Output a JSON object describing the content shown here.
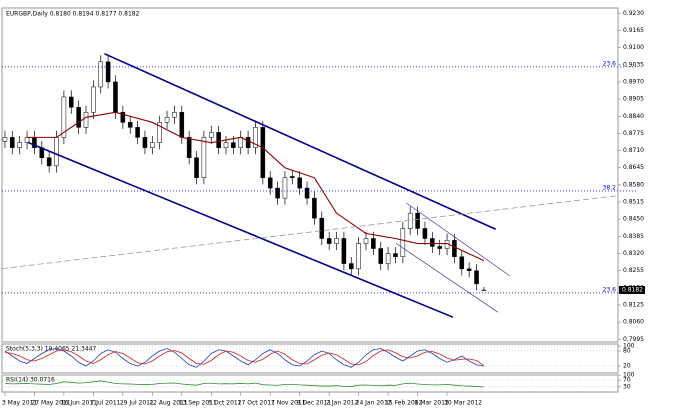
{
  "chart_data": [
    {
      "type": "candlestick",
      "title": "EURGBP,Daily 0.8180 0.8194 0.8177 0.8182",
      "bull_color": "#ffffff",
      "bear_color": "#000000",
      "outline_color": "#000000",
      "open": [
        0.8745,
        0.876,
        0.8721,
        0.874,
        0.876,
        0.8721,
        0.8683,
        0.8652,
        0.876,
        0.8913,
        0.8874,
        0.8798,
        0.8855,
        0.8951,
        0.9046,
        0.897,
        0.8855,
        0.8817,
        0.8798,
        0.876,
        0.8721,
        0.874,
        0.8817,
        0.8836,
        0.8855,
        0.876,
        0.8683,
        0.8607,
        0.876,
        0.8779,
        0.8721,
        0.874,
        0.8721,
        0.876,
        0.8721,
        0.8798,
        0.8607,
        0.8568,
        0.853,
        0.8612,
        0.8607,
        0.8568,
        0.853,
        0.8454,
        0.8377,
        0.8358,
        0.8377,
        0.8282,
        0.8262,
        0.8358,
        0.8377,
        0.8339,
        0.8282,
        0.832,
        0.8308,
        0.8415,
        0.8473,
        0.8415,
        0.8377,
        0.8347,
        0.8339,
        0.837,
        0.8308,
        0.8262,
        0.8255,
        0.818
      ],
      "high": [
        0.8785,
        0.8785,
        0.8765,
        0.8785,
        0.8785,
        0.8746,
        0.8708,
        0.8785,
        0.8938,
        0.8938,
        0.8899,
        0.888,
        0.8976,
        0.9071,
        0.9071,
        0.8995,
        0.888,
        0.8842,
        0.8823,
        0.8785,
        0.8765,
        0.8842,
        0.8861,
        0.888,
        0.888,
        0.8785,
        0.8708,
        0.8785,
        0.8804,
        0.8804,
        0.8765,
        0.8765,
        0.8785,
        0.8785,
        0.8823,
        0.8823,
        0.8632,
        0.8593,
        0.8632,
        0.8637,
        0.8632,
        0.8593,
        0.8555,
        0.8479,
        0.8402,
        0.8402,
        0.8402,
        0.8307,
        0.8383,
        0.8402,
        0.8402,
        0.8364,
        0.8345,
        0.8345,
        0.844,
        0.8498,
        0.8498,
        0.844,
        0.8402,
        0.8372,
        0.8395,
        0.8395,
        0.8333,
        0.8287,
        0.828,
        0.8194
      ],
      "low": [
        0.872,
        0.8696,
        0.8696,
        0.8715,
        0.8696,
        0.8658,
        0.8627,
        0.8627,
        0.8735,
        0.8849,
        0.8773,
        0.8773,
        0.883,
        0.8926,
        0.8945,
        0.883,
        0.8792,
        0.8773,
        0.8735,
        0.8696,
        0.8696,
        0.8715,
        0.8792,
        0.8811,
        0.8735,
        0.8658,
        0.8582,
        0.8582,
        0.8735,
        0.8696,
        0.8696,
        0.8696,
        0.8696,
        0.8696,
        0.8696,
        0.8582,
        0.8543,
        0.8505,
        0.8505,
        0.8582,
        0.8543,
        0.8505,
        0.8429,
        0.8352,
        0.8333,
        0.8333,
        0.8257,
        0.8237,
        0.8237,
        0.8333,
        0.8314,
        0.8257,
        0.8257,
        0.8283,
        0.8283,
        0.839,
        0.839,
        0.8352,
        0.8322,
        0.8314,
        0.8314,
        0.8283,
        0.8237,
        0.823,
        0.818,
        0.8177
      ],
      "close": [
        0.876,
        0.8721,
        0.874,
        0.876,
        0.8721,
        0.8683,
        0.8652,
        0.876,
        0.8913,
        0.8874,
        0.8798,
        0.8855,
        0.8951,
        0.9046,
        0.897,
        0.8855,
        0.8817,
        0.8798,
        0.876,
        0.8721,
        0.874,
        0.8817,
        0.8836,
        0.8855,
        0.876,
        0.8683,
        0.8607,
        0.876,
        0.8779,
        0.8721,
        0.874,
        0.8721,
        0.876,
        0.8721,
        0.8798,
        0.8607,
        0.8568,
        0.853,
        0.8607,
        0.8607,
        0.8568,
        0.853,
        0.8454,
        0.8377,
        0.8358,
        0.8377,
        0.8282,
        0.8262,
        0.8358,
        0.8377,
        0.8339,
        0.8282,
        0.832,
        0.8308,
        0.8415,
        0.8473,
        0.8415,
        0.8377,
        0.8347,
        0.8339,
        0.837,
        0.8308,
        0.8262,
        0.8255,
        0.8205,
        0.8182
      ],
      "price_label": "0.8182",
      "xlim": [
        -0.4,
        83.2
      ],
      "ylim": [
        0.7985,
        0.925
      ],
      "yticks": [
        {
          "value": 0.923,
          "label": "0.9230"
        },
        {
          "value": 0.9165,
          "label": "0.9165"
        },
        {
          "value": 0.91,
          "label": "0.9100"
        },
        {
          "value": 0.9035,
          "label": "0.9035"
        },
        {
          "value": 0.897,
          "label": "0.8970"
        },
        {
          "value": 0.8905,
          "label": "0.8905"
        },
        {
          "value": 0.884,
          "label": "0.8840"
        },
        {
          "value": 0.8775,
          "label": "0.8775"
        },
        {
          "value": 0.871,
          "label": "0.8710"
        },
        {
          "value": 0.8645,
          "label": "0.8645"
        },
        {
          "value": 0.858,
          "label": "0.8580"
        },
        {
          "value": 0.8515,
          "label": "0.8515"
        },
        {
          "value": 0.845,
          "label": "0.8450"
        },
        {
          "value": 0.8385,
          "label": "0.8385"
        },
        {
          "value": 0.832,
          "label": "0.8320"
        },
        {
          "value": 0.8255,
          "label": "0.8255"
        },
        {
          "value": 0.819,
          "label": "0.8190"
        },
        {
          "value": 0.8125,
          "label": "0.8125"
        },
        {
          "value": 0.806,
          "label": "0.8060"
        },
        {
          "value": 0.7995,
          "label": "0.7995"
        }
      ],
      "xticks": [
        {
          "value": 0,
          "label": "3 May 2011"
        },
        {
          "value": 4,
          "label": "27 May 2011"
        },
        {
          "value": 8,
          "label": "16 Jun 2011"
        },
        {
          "value": 12,
          "label": "7 Jul 2011"
        },
        {
          "value": 16,
          "label": "29 Jul 2011"
        },
        {
          "value": 20,
          "label": "22 Aug 2011"
        },
        {
          "value": 24,
          "label": "13 Sep 2011"
        },
        {
          "value": 28,
          "label": "5 Oct 2011"
        },
        {
          "value": 32,
          "label": "27 Oct 2011"
        },
        {
          "value": 36,
          "label": "17 Nov 2011"
        },
        {
          "value": 40,
          "label": "9 Dec 2011"
        },
        {
          "value": 44,
          "label": "2 Jan 2012"
        },
        {
          "value": 48,
          "label": "24 Jan 2012"
        },
        {
          "value": 52,
          "label": "15 Feb 2012"
        },
        {
          "value": 56,
          "label": "8 Mar 2012"
        },
        {
          "value": 60,
          "label": "30 Mar 2012"
        }
      ],
      "levels_color": "#0000ff",
      "levels": [
        {
          "value": 0.9027,
          "label": "23.6"
        },
        {
          "value": 0.8557,
          "label": "38.2"
        },
        {
          "value": 0.8171,
          "label": "23.6"
        }
      ],
      "ma": {
        "color": "#8b0000",
        "x": [
          3,
          7,
          11,
          15,
          20,
          24,
          28,
          32,
          35,
          38,
          42,
          45,
          49,
          53,
          56,
          60,
          65
        ],
        "values": [
          0.876,
          0.876,
          0.8836,
          0.8855,
          0.8817,
          0.876,
          0.874,
          0.876,
          0.8721,
          0.8645,
          0.8607,
          0.8473,
          0.8396,
          0.8377,
          0.8358,
          0.8358,
          0.8293
        ]
      },
      "trendlines": [
        {
          "color": "#00008b",
          "width": 1.6,
          "x": [
            13.5,
            66.6
          ],
          "values": [
            0.9077,
            0.8412
          ]
        },
        {
          "color": "#00008b",
          "width": 1.6,
          "x": [
            3.1,
            60.8
          ],
          "values": [
            0.8741,
            0.8079
          ]
        },
        {
          "color": "#3a3aa8",
          "width": 0.7,
          "x": [
            54.5,
            68.5
          ],
          "values": [
            0.8511,
            0.8236
          ]
        },
        {
          "color": "#3a3aa8",
          "width": 0.7,
          "x": [
            53.1,
            66.9
          ],
          "values": [
            0.8358,
            0.8098
          ]
        },
        {
          "color": "#999999",
          "width": 0.8,
          "dashed": true,
          "x": [
            -0.4,
            86.1
          ],
          "values": [
            0.8263,
            0.8549
          ]
        }
      ]
    },
    {
      "type": "line",
      "title": "Stoch(5,3,3) 19.4065 21.3447",
      "ylim": [
        -8,
        108
      ],
      "yticks": [
        100,
        80,
        20
      ],
      "grid": true,
      "series": [
        {
          "color": "#2040c0",
          "values": [
            80,
            60,
            40,
            30,
            50,
            70,
            85,
            90,
            80,
            60,
            35,
            20,
            40,
            70,
            85,
            75,
            50,
            30,
            20,
            35,
            60,
            80,
            90,
            75,
            50,
            25,
            15,
            40,
            70,
            85,
            80,
            60,
            40,
            25,
            45,
            70,
            85,
            70,
            45,
            25,
            20,
            40,
            65,
            80,
            70,
            45,
            25,
            15,
            35,
            65,
            85,
            90,
            75,
            55,
            40,
            60,
            80,
            85,
            70,
            50,
            35,
            45,
            60,
            40,
            25,
            19.4065
          ]
        },
        {
          "color": "#d02020",
          "values": [
            75,
            70,
            60,
            45,
            40,
            50,
            65,
            80,
            85,
            77,
            60,
            40,
            30,
            45,
            65,
            78,
            70,
            52,
            33,
            28,
            40,
            60,
            77,
            82,
            72,
            50,
            30,
            27,
            42,
            65,
            80,
            75,
            60,
            42,
            35,
            47,
            67,
            80,
            67,
            45,
            30,
            28,
            45,
            63,
            72,
            65,
            47,
            28,
            25,
            38,
            62,
            80,
            85,
            73,
            57,
            52,
            60,
            75,
            78,
            68,
            52,
            43,
            47,
            48,
            42,
            21.3447
          ]
        }
      ]
    },
    {
      "type": "line",
      "title": "RSI(14) 30.0716",
      "ylim": [
        0,
        100
      ],
      "yticks": [
        100,
        70,
        30
      ],
      "grid": true,
      "series": [
        {
          "color": "#2e8b2e",
          "values": [
            50,
            48,
            49,
            50,
            48,
            46,
            44,
            50,
            60,
            57,
            52,
            55,
            60,
            65,
            58,
            50,
            48,
            47,
            45,
            43,
            45,
            50,
            52,
            53,
            47,
            43,
            40,
            50,
            52,
            48,
            49,
            48,
            51,
            48,
            53,
            43,
            41,
            39,
            45,
            45,
            42,
            40,
            37,
            35,
            35,
            37,
            33,
            32,
            40,
            41,
            39,
            36,
            40,
            39,
            48,
            52,
            47,
            44,
            42,
            42,
            45,
            40,
            36,
            35,
            32,
            30.0716
          ]
        }
      ]
    }
  ]
}
